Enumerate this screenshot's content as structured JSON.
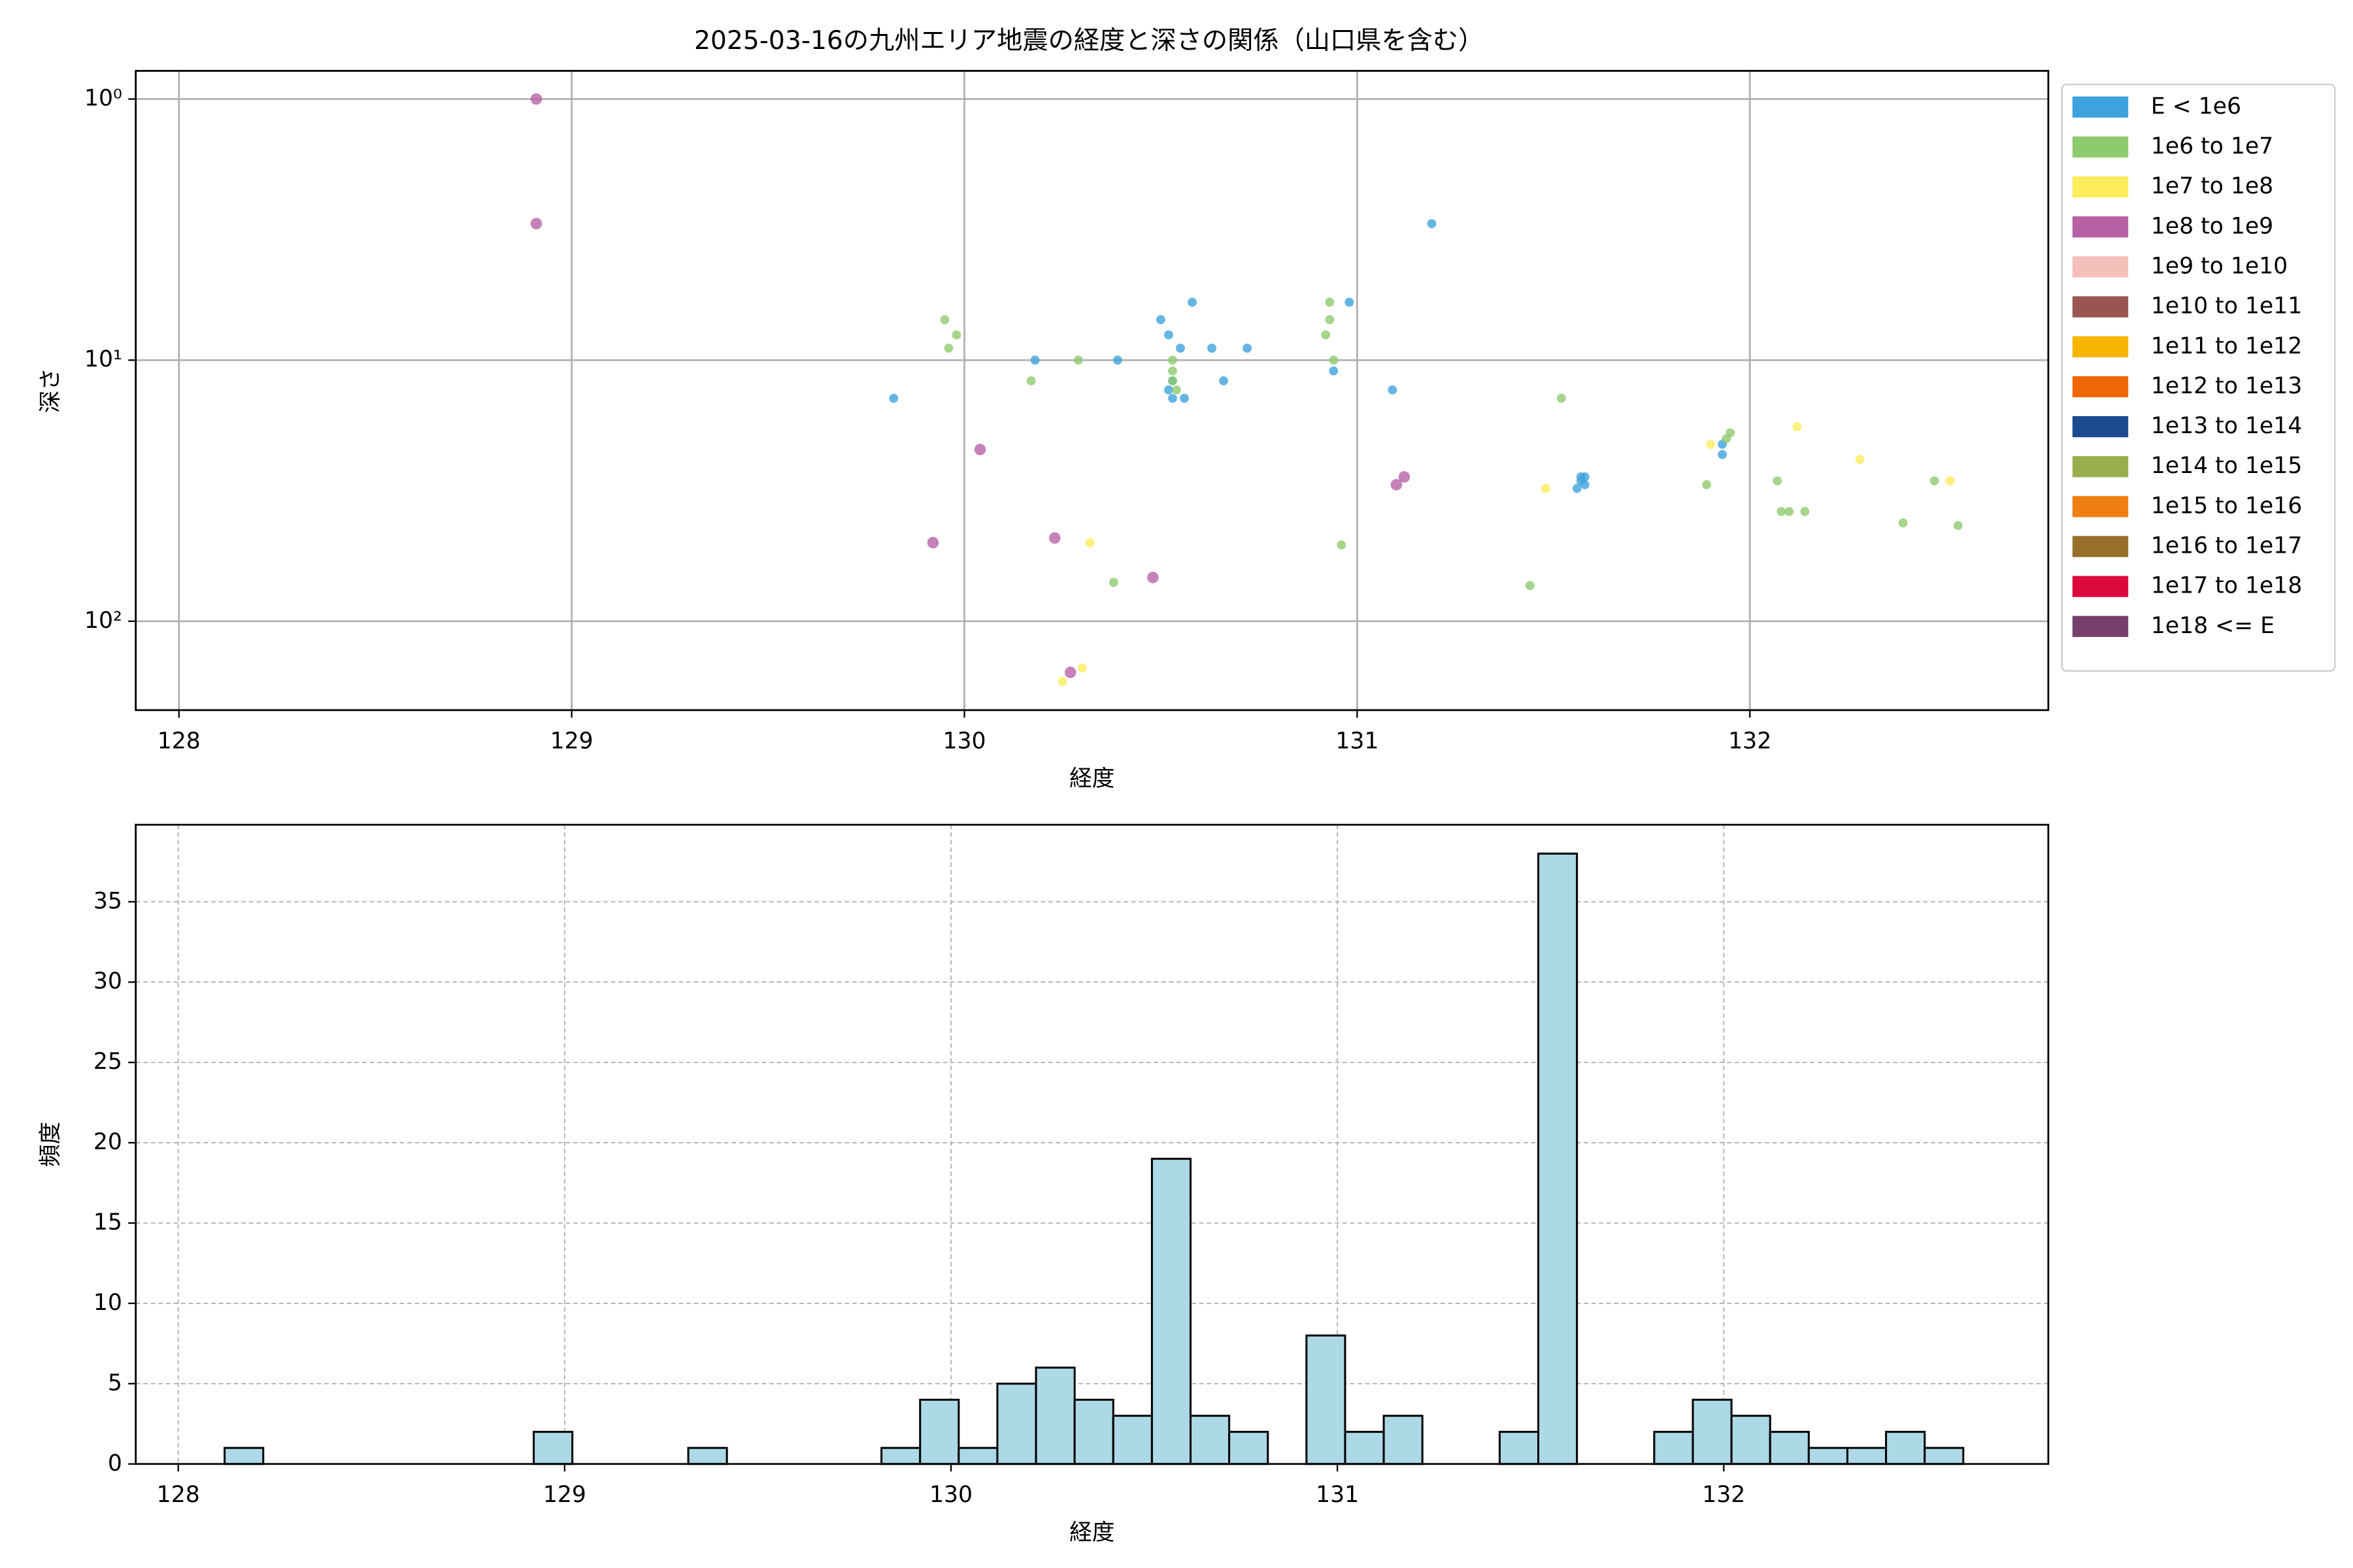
{
  "chart_data": [
    {
      "type": "scatter",
      "title": "2025-03-16の九州エリア地震の経度と深さの関係（山口県を含む）",
      "x_label": "経度",
      "y_label": "深さ",
      "xlim": [
        127.89,
        132.76
      ],
      "xticks": [
        128,
        129,
        130,
        131,
        132
      ],
      "ylim": [
        0.78,
        219
      ],
      "yscale": "log",
      "y_inverted": true,
      "yticks": [
        {
          "value": 1,
          "label": "10⁰"
        },
        {
          "value": 10,
          "label": "10¹"
        },
        {
          "value": 100,
          "label": "10²"
        }
      ],
      "grid": true,
      "legend": "outside-right",
      "series": [
        {
          "name": "E < 1e6",
          "color": "#3ea3dd",
          "x": [
            129.82,
            130.18,
            130.39,
            130.5,
            130.52,
            130.55,
            130.58,
            130.63,
            130.72,
            130.66,
            130.53,
            130.53,
            130.56,
            130.52,
            130.94,
            130.98,
            131.09,
            131.19,
            131.93,
            131.57,
            131.58,
            131.56,
            131.57,
            131.58,
            131.93
          ],
          "values": [
            14,
            10,
            10,
            7,
            8,
            9,
            6,
            9,
            9,
            12,
            12,
            14,
            14,
            13,
            11,
            6,
            13,
            3,
            23,
            28,
            30,
            31,
            29,
            28,
            21
          ]
        },
        {
          "name": "1e6 to 1e7",
          "color": "#8ecb6e",
          "x": [
            129.95,
            129.98,
            129.96,
            130.17,
            130.29,
            130.53,
            130.53,
            130.53,
            130.54,
            130.38,
            130.93,
            130.93,
            130.92,
            130.94,
            130.96,
            131.52,
            131.44,
            131.89,
            131.95,
            131.94,
            132.07,
            132.08,
            132.1,
            132.14,
            132.39,
            132.47,
            132.53
          ],
          "values": [
            7,
            8,
            9,
            12,
            10,
            10,
            11,
            12,
            13,
            71,
            6,
            7,
            8,
            10,
            51,
            14,
            73,
            30,
            19,
            20,
            29,
            38,
            38,
            38,
            42,
            29,
            43
          ]
        },
        {
          "name": "1e7 to 1e8",
          "color": "#fdec5b",
          "x": [
            130.32,
            130.3,
            130.25,
            131.48,
            131.9,
            132.12,
            132.28,
            132.51
          ],
          "values": [
            50,
            151,
            170,
            31,
            21,
            18,
            24,
            29
          ]
        },
        {
          "name": "1e8 to 1e9",
          "color": "#b762a6",
          "x": [
            128.91,
            128.91,
            130.04,
            129.92,
            130.23,
            130.48,
            130.27,
            131.1,
            131.12
          ],
          "values": [
            1,
            3,
            22,
            50,
            48,
            68,
            157,
            30,
            28
          ]
        },
        {
          "name": "1e9 to 1e10",
          "color": "#f5c0b9",
          "x": [],
          "values": []
        },
        {
          "name": "1e10 to 1e11",
          "color": "#995550",
          "x": [],
          "values": []
        },
        {
          "name": "1e11 to 1e12",
          "color": "#f7b500",
          "x": [],
          "values": []
        },
        {
          "name": "1e12 to 1e13",
          "color": "#ef6608",
          "x": [],
          "values": []
        },
        {
          "name": "1e13 to 1e14",
          "color": "#1b4a91",
          "x": [],
          "values": []
        },
        {
          "name": "1e14 to 1e15",
          "color": "#9aad4e",
          "x": [],
          "values": []
        },
        {
          "name": "1e15 to 1e16",
          "color": "#ef7f12",
          "x": [],
          "values": []
        },
        {
          "name": "1e16 to 1e17",
          "color": "#976f2b",
          "x": [],
          "values": []
        },
        {
          "name": "1e17 to 1e18",
          "color": "#dc0a3c",
          "x": [],
          "values": []
        },
        {
          "name": "1e18 <= E",
          "color": "#76406c",
          "x": [],
          "values": []
        }
      ]
    },
    {
      "type": "histogram",
      "x_label": "経度",
      "y_label": "頻度",
      "xlim": [
        127.89,
        132.84
      ],
      "xticks": [
        128,
        129,
        130,
        131,
        132
      ],
      "ylim": [
        0,
        39.8
      ],
      "yticks": [
        0,
        5,
        10,
        15,
        20,
        25,
        30,
        35
      ],
      "grid": true,
      "color": "#add8e6",
      "bins": [
        128.12,
        128.22,
        128.32,
        128.42,
        128.52,
        128.62,
        128.72,
        128.82,
        128.92,
        129.02,
        129.12,
        129.22,
        129.32,
        129.42,
        129.52,
        129.62,
        129.72,
        129.82,
        129.92,
        130.02,
        130.12,
        130.22,
        130.32,
        130.42,
        130.52,
        130.62,
        130.72,
        130.82,
        130.92,
        131.02,
        131.12,
        131.22,
        131.32,
        131.42,
        131.52,
        131.62,
        131.72,
        131.82,
        131.92,
        132.02,
        132.12,
        132.22,
        132.32,
        132.42,
        132.52,
        132.62
      ],
      "values": [
        1,
        0,
        0,
        0,
        0,
        0,
        0,
        0,
        2,
        0,
        0,
        0,
        1,
        0,
        0,
        0,
        0,
        1,
        4,
        1,
        5,
        6,
        4,
        3,
        19,
        3,
        2,
        0,
        8,
        2,
        3,
        0,
        0,
        2,
        38,
        0,
        0,
        2,
        4,
        3,
        2,
        1,
        1,
        2,
        1
      ]
    }
  ]
}
